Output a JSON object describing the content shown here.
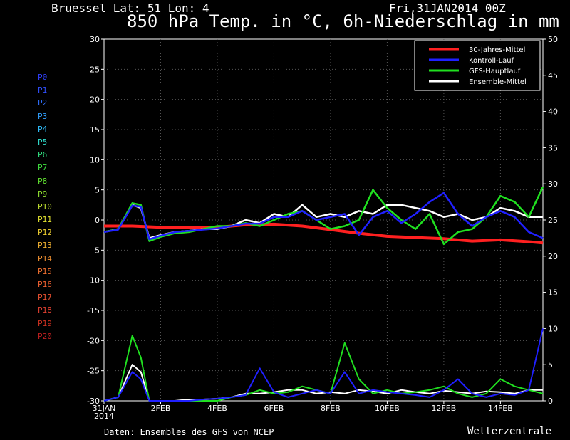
{
  "header": {
    "station": "Bruessel  Lat: 51 Lon: 4",
    "datetime": "Fri,31JAN2014 00Z",
    "title": "850 hPa Temp. in °C, 6h-Niederschlag in mm"
  },
  "footer": {
    "source": "Daten: Ensembles des GFS von NCEP",
    "brand": "Wetterzentrale"
  },
  "members": [
    {
      "label": "P0",
      "color": "#3040ff"
    },
    {
      "label": "P1",
      "color": "#3050ff"
    },
    {
      "label": "P2",
      "color": "#3070ff"
    },
    {
      "label": "P3",
      "color": "#30a0ff"
    },
    {
      "label": "P4",
      "color": "#30c0ff"
    },
    {
      "label": "P5",
      "color": "#30e0d0"
    },
    {
      "label": "P6",
      "color": "#30e080"
    },
    {
      "label": "P7",
      "color": "#40e040"
    },
    {
      "label": "P8",
      "color": "#60e030"
    },
    {
      "label": "P9",
      "color": "#90e030"
    },
    {
      "label": "P10",
      "color": "#c0e030"
    },
    {
      "label": "P11",
      "color": "#e0e030"
    },
    {
      "label": "P12",
      "color": "#f0d030"
    },
    {
      "label": "P13",
      "color": "#f0b030"
    },
    {
      "label": "P14",
      "color": "#f09030"
    },
    {
      "label": "P15",
      "color": "#f07030"
    },
    {
      "label": "P16",
      "color": "#f06030"
    },
    {
      "label": "P17",
      "color": "#e85030"
    },
    {
      "label": "P18",
      "color": "#e04030"
    },
    {
      "label": "P19",
      "color": "#d03020"
    },
    {
      "label": "P20",
      "color": "#c02020"
    }
  ],
  "chart_data": {
    "type": "line",
    "grid": true,
    "legend_position": "top-right",
    "x_ticks": [
      {
        "day": 0,
        "label": "31JAN",
        "sublabel": "2014"
      },
      {
        "day": 2,
        "label": "2FEB"
      },
      {
        "day": 4,
        "label": "4FEB"
      },
      {
        "day": 6,
        "label": "6FEB"
      },
      {
        "day": 8,
        "label": "8FEB"
      },
      {
        "day": 10,
        "label": "10FEB"
      },
      {
        "day": 12,
        "label": "12FEB"
      },
      {
        "day": 14,
        "label": "14FEB"
      }
    ],
    "xlim": [
      0,
      15.5
    ],
    "y_left": {
      "ylim": [
        -30,
        30
      ],
      "ticks": [
        30,
        25,
        20,
        15,
        10,
        5,
        0,
        -5,
        -10,
        -15,
        -20,
        -25,
        -30
      ]
    },
    "y_right": {
      "ylim": [
        0,
        50
      ],
      "ticks": [
        50,
        45,
        40,
        35,
        30,
        25,
        20,
        15,
        10,
        5,
        0
      ]
    },
    "legend": [
      {
        "name": "30-Jahres-Mittel",
        "color": "#ff2020"
      },
      {
        "name": "Kontroll-Lauf",
        "color": "#2020ff"
      },
      {
        "name": "GFS-Hauptlauf",
        "color": "#20e020"
      },
      {
        "name": "Ensemble-Mittel",
        "color": "#ffffff"
      }
    ],
    "series": [
      {
        "name": "30-Jahres-Mittel",
        "color": "#ff2020",
        "x": [
          0,
          1,
          2,
          3,
          4,
          5,
          6,
          7,
          8,
          9,
          10,
          11,
          12,
          13,
          14,
          15,
          15.5
        ],
        "temp": [
          -1,
          -1,
          -1.2,
          -1.3,
          -1.2,
          -0.8,
          -0.7,
          -1.0,
          -1.6,
          -2.2,
          -2.7,
          -2.9,
          -3.1,
          -3.5,
          -3.3,
          -3.6,
          -3.8
        ]
      },
      {
        "name": "Ensemble-Mittel",
        "color": "#ffffff",
        "x": [
          0,
          0.5,
          1,
          1.3,
          1.6,
          2,
          2.5,
          3,
          3.5,
          4,
          4.5,
          5,
          5.5,
          6,
          6.5,
          7,
          7.5,
          8,
          8.5,
          9,
          9.5,
          10,
          10.5,
          11,
          11.5,
          12,
          12.5,
          13,
          13.5,
          14,
          14.5,
          15,
          15.5
        ],
        "temp": [
          -2,
          -1.5,
          2.5,
          2.0,
          -3.0,
          -2.5,
          -2.0,
          -1.8,
          -1.5,
          -1.5,
          -1.0,
          0,
          -0.5,
          1.0,
          0.5,
          2.5,
          0.5,
          1.0,
          0.5,
          1.5,
          1.0,
          2.5,
          2.5,
          2.0,
          1.5,
          0.5,
          1.0,
          0,
          0.5,
          2.0,
          1.5,
          0.5,
          0.5
        ],
        "precip": [
          0,
          0.5,
          5,
          4,
          0,
          0,
          0,
          0.2,
          0.2,
          0.3,
          0.5,
          1,
          1,
          1.2,
          1.5,
          1.5,
          1,
          1.2,
          1,
          1.5,
          1.3,
          1,
          1.5,
          1.2,
          1,
          1.4,
          1.2,
          1,
          1.3,
          1.2,
          1,
          1.5,
          1.5
        ]
      },
      {
        "name": "GFS-Hauptlauf",
        "color": "#20e020",
        "x": [
          0,
          0.5,
          1,
          1.3,
          1.6,
          2,
          2.5,
          3,
          3.5,
          4,
          4.5,
          5,
          5.5,
          6,
          6.5,
          7,
          7.5,
          8,
          8.5,
          9,
          9.5,
          10,
          10.5,
          11,
          11.5,
          12,
          12.5,
          13,
          13.5,
          14,
          14.5,
          15,
          15.5
        ],
        "temp": [
          -2,
          -1.5,
          2.8,
          2.5,
          -3.5,
          -2.8,
          -2.2,
          -2.0,
          -1.5,
          -1.0,
          -1.0,
          -0.5,
          -1.0,
          0,
          1.0,
          1.5,
          0,
          -1.5,
          -1.0,
          0,
          5.0,
          2.0,
          0,
          -1.5,
          1.0,
          -4.0,
          -2.0,
          -1.5,
          0.5,
          4.0,
          3.0,
          0.5,
          5.5
        ],
        "precip": [
          0,
          0.5,
          9,
          6,
          0,
          0,
          0,
          0,
          0,
          0,
          0.5,
          0.8,
          1.5,
          1,
          1.2,
          2,
          1.5,
          1,
          8,
          3,
          1,
          1.5,
          1,
          1.2,
          1.5,
          2,
          1,
          0.5,
          1,
          3,
          2,
          1.5,
          1
        ]
      },
      {
        "name": "Kontroll-Lauf",
        "color": "#2020ff",
        "x": [
          0,
          0.5,
          1,
          1.3,
          1.6,
          2,
          2.5,
          3,
          3.5,
          4,
          4.5,
          5,
          5.5,
          6,
          6.5,
          7,
          7.5,
          8,
          8.5,
          9,
          9.5,
          10,
          10.5,
          11,
          11.5,
          12,
          12.5,
          13,
          13.5,
          14,
          14.5,
          15,
          15.5
        ],
        "temp": [
          -2,
          -1.6,
          2.4,
          2.2,
          -3.2,
          -2.6,
          -2.0,
          -1.8,
          -1.6,
          -1.4,
          -1.0,
          -0.6,
          -0.6,
          0.5,
          0.5,
          1.5,
          0,
          0.5,
          1.0,
          -2.5,
          0.5,
          1.5,
          -0.5,
          1.0,
          3.0,
          4.5,
          1.0,
          -1.0,
          0.5,
          1.5,
          0.5,
          -2.0,
          -3.0
        ],
        "precip": [
          0,
          0.5,
          4,
          3,
          0,
          0,
          0,
          0,
          0.2,
          0.3,
          0.5,
          0.8,
          4.5,
          1.2,
          0.5,
          1,
          1.5,
          1,
          4,
          1,
          1.5,
          1.2,
          1,
          0.8,
          0.5,
          1.5,
          3,
          1,
          0.5,
          1,
          0.8,
          1.5,
          10
        ]
      }
    ]
  }
}
